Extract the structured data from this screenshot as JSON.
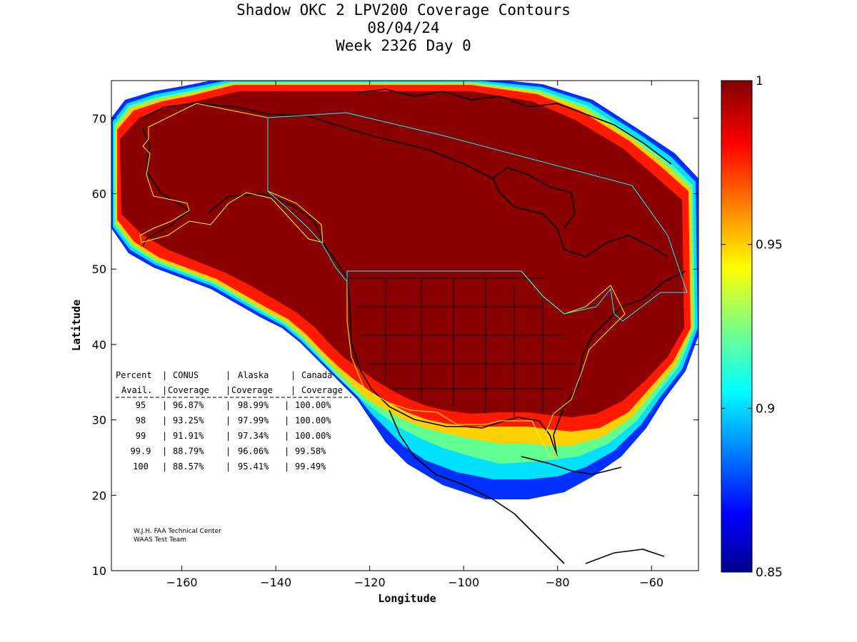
{
  "title": {
    "line1": "Shadow OKC 2 LPV200 Coverage Contours",
    "line2": "08/04/24",
    "line3": "Week 2326 Day 0"
  },
  "map": {
    "xlabel": "Longitude",
    "ylabel": "Latitude",
    "xlim": [
      -175,
      -50
    ],
    "ylim": [
      10,
      75
    ],
    "x_ticks": [
      -160,
      -140,
      -120,
      -100,
      -80,
      -60
    ],
    "y_ticks": [
      10,
      20,
      30,
      40,
      50,
      60,
      70
    ]
  },
  "colorbar": {
    "range": [
      0.85,
      1
    ],
    "ticks": [
      {
        "value": 1,
        "label": "1"
      },
      {
        "value": 0.95,
        "label": "0.95"
      },
      {
        "value": 0.9,
        "label": "0.9"
      },
      {
        "value": 0.85,
        "label": "0.85"
      }
    ]
  },
  "coverage_table": {
    "header1": [
      "Percent",
      "CONUS",
      "Alaska",
      "Canada"
    ],
    "header2": [
      "Avail.",
      "Coverage",
      "Coverage",
      "Coverage"
    ],
    "rows": [
      [
        "95",
        "96.87%",
        "98.99%",
        "100.00%"
      ],
      [
        "98",
        "93.25%",
        "97.99%",
        "100.00%"
      ],
      [
        "99",
        "91.91%",
        "97.34%",
        "100.00%"
      ],
      [
        "99.9",
        "88.79%",
        "96.06%",
        "99.58%"
      ],
      [
        "100",
        "88.57%",
        "95.41%",
        "99.49%"
      ]
    ]
  },
  "credit": {
    "line1": "W.J.H. FAA Technical Center",
    "line2": "WAAS Test Team"
  }
}
